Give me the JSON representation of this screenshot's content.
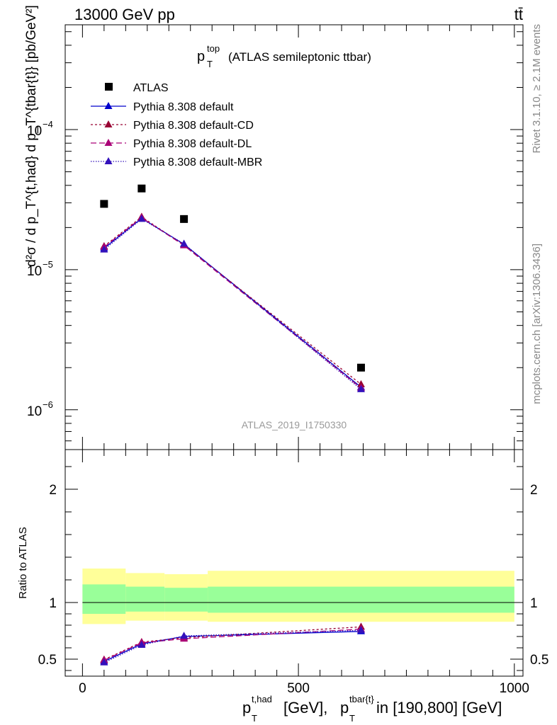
{
  "header": {
    "energy": "13000 GeV pp",
    "process": "tt̄"
  },
  "side_labels": {
    "rivet": "Rivet 3.1.10, ≥ 2.1M events",
    "source": "mcplots.cern.ch [arXiv:1306.3436]"
  },
  "analysis_id": "ATLAS_2019_I1750330",
  "chart_data": [
    {
      "type": "line",
      "panel": "main",
      "title": {
        "p": "p",
        "sup": "top",
        "sub": "T",
        "rest": "(ATLAS semileptonic ttbar)"
      },
      "ylabel": "d²σ / d p_T^{t,had} d p_T^{tbar{t}} [pb/GeV²]",
      "yscale": "log",
      "xlim": [
        -40,
        1020
      ],
      "ylim": [
        5.2e-07,
        0.00056
      ],
      "y_ticks": [
        {
          "value": 1e-06,
          "base": "10",
          "exp": "−6"
        },
        {
          "value": 1e-05,
          "base": "10",
          "exp": "−5"
        },
        {
          "value": 0.0001,
          "base": "10",
          "exp": "−4"
        }
      ],
      "legend_position": "top-left",
      "data_points": {
        "name": "ATLAS",
        "x": [
          50,
          137,
          235,
          645
        ],
        "y": [
          2.95e-05,
          3.8e-05,
          2.3e-05,
          2e-06
        ]
      },
      "series": [
        {
          "name": "Pythia 8.308 default",
          "color": "#0000cc",
          "dash": "",
          "x": [
            50,
            137,
            235,
            645
          ],
          "y": [
            1.42e-05,
            2.33e-05,
            1.52e-05,
            1.45e-06
          ]
        },
        {
          "name": "Pythia 8.308 default-CD",
          "color": "#990033",
          "dash": "3,3",
          "x": [
            50,
            137,
            235,
            645
          ],
          "y": [
            1.47e-05,
            2.38e-05,
            1.5e-05,
            1.52e-06
          ]
        },
        {
          "name": "Pythia 8.308 default-DL",
          "color": "#aa0077",
          "dash": "8,4",
          "x": [
            50,
            137,
            235,
            645
          ],
          "y": [
            1.45e-05,
            2.35e-05,
            1.49e-05,
            1.43e-06
          ]
        },
        {
          "name": "Pythia 8.308 default-MBR",
          "color": "#3311bb",
          "dash": "1.5,2",
          "x": [
            50,
            137,
            235,
            645
          ],
          "y": [
            1.39e-05,
            2.3e-05,
            1.53e-05,
            1.4e-06
          ]
        }
      ]
    },
    {
      "type": "line",
      "panel": "ratio",
      "ylabel": "Ratio to ATLAS",
      "xlim": [
        -40,
        1020
      ],
      "ylim": [
        0.35,
        2.35
      ],
      "y_ticks": [
        0.5,
        1,
        2
      ],
      "y_tick_labels": [
        "0.5",
        "1",
        "2"
      ],
      "x_ticks": [
        0,
        500,
        1000
      ],
      "x_tick_labels": [
        "0",
        "500",
        "1000"
      ],
      "xlabel": {
        "p1": "p",
        "sup1": "t,had",
        "sub1": "T",
        "mid": "[GeV], ",
        "p2": "p",
        "sup2": "tbar{t}",
        "sub2": "T",
        "rest": "in [190,800] [GeV]"
      },
      "bands": [
        {
          "x0": 0,
          "x1": 100,
          "yellow": [
            0.81,
            1.3
          ],
          "green": [
            0.9,
            1.16
          ]
        },
        {
          "x0": 100,
          "x1": 190,
          "yellow": [
            0.84,
            1.26
          ],
          "green": [
            0.92,
            1.14
          ]
        },
        {
          "x0": 190,
          "x1": 290,
          "yellow": [
            0.84,
            1.25
          ],
          "green": [
            0.92,
            1.13
          ]
        },
        {
          "x0": 290,
          "x1": 1000,
          "yellow": [
            0.83,
            1.28
          ],
          "green": [
            0.91,
            1.14
          ]
        }
      ],
      "series": [
        {
          "name": "Pythia 8.308 default",
          "color": "#0000cc",
          "dash": "",
          "x": [
            50,
            137,
            235,
            645
          ],
          "y": [
            0.48,
            0.635,
            0.7,
            0.745
          ]
        },
        {
          "name": "Pythia 8.308 default-CD",
          "color": "#990033",
          "dash": "3,3",
          "x": [
            50,
            137,
            235,
            645
          ],
          "y": [
            0.495,
            0.65,
            0.69,
            0.785
          ]
        },
        {
          "name": "Pythia 8.308 default-DL",
          "color": "#aa0077",
          "dash": "8,4",
          "x": [
            50,
            137,
            235,
            645
          ],
          "y": [
            0.49,
            0.645,
            0.68,
            0.765
          ]
        },
        {
          "name": "Pythia 8.308 default-MBR",
          "color": "#3311bb",
          "dash": "1.5,2",
          "x": [
            50,
            137,
            235,
            645
          ],
          "y": [
            0.47,
            0.625,
            0.705,
            0.755
          ]
        }
      ]
    }
  ]
}
